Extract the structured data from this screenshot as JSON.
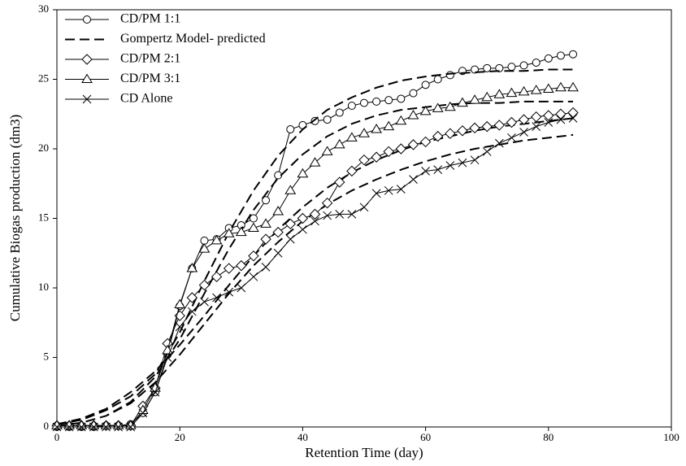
{
  "chart_data": {
    "type": "line",
    "x_label": "Retention Time (day)",
    "y_label": "Cumulative Biogas production (dm3)",
    "xlim": [
      0,
      100
    ],
    "xticks": [
      0,
      20,
      40,
      60,
      80,
      100
    ],
    "ylim": [
      0,
      30
    ],
    "yticks": [
      0,
      5,
      10,
      15,
      20,
      25,
      30
    ],
    "legend": "upper left",
    "series": [
      {
        "name": "CD/PM 1:1",
        "color": "#000000",
        "marker": "circle",
        "linestyle": "solid",
        "x": [
          0,
          2,
          4,
          6,
          8,
          10,
          12,
          14,
          16,
          18,
          20,
          22,
          24,
          26,
          28,
          30,
          32,
          34,
          36,
          38,
          40,
          42,
          44,
          46,
          48,
          50,
          52,
          54,
          56,
          58,
          60,
          62,
          64,
          66,
          68,
          70,
          72,
          74,
          76,
          78,
          80,
          82,
          84
        ],
        "values": [
          0,
          0,
          0,
          0,
          0.1,
          0.1,
          0.2,
          1.0,
          2.5,
          5.2,
          8.7,
          11.4,
          13.4,
          13.5,
          14.3,
          14.5,
          15.0,
          16.3,
          18.1,
          21.4,
          21.7,
          22.0,
          22.1,
          22.6,
          23.1,
          23.3,
          23.4,
          23.5,
          23.6,
          24.0,
          24.6,
          25.0,
          25.3,
          25.6,
          25.7,
          25.8,
          25.8,
          25.9,
          26.0,
          26.2,
          26.5,
          26.7,
          26.8
        ]
      },
      {
        "name": "Gompertz Model- predicted",
        "color": "#000000",
        "marker": "none",
        "linestyle": "dashed",
        "x": [
          0,
          4,
          8,
          12,
          16,
          20,
          24,
          28,
          32,
          36,
          40,
          44,
          48,
          52,
          56,
          60,
          64,
          68,
          72,
          76,
          80,
          84,
          null,
          0,
          4,
          8,
          12,
          16,
          20,
          24,
          28,
          32,
          36,
          40,
          44,
          48,
          52,
          56,
          60,
          64,
          68,
          72,
          76,
          80,
          84,
          null,
          0,
          4,
          8,
          12,
          16,
          20,
          24,
          28,
          32,
          36,
          40,
          44,
          48,
          52,
          56,
          60,
          64,
          68,
          72,
          76,
          80,
          84,
          null,
          0,
          4,
          8,
          12,
          16,
          20,
          24,
          28,
          32,
          36,
          40,
          44,
          48,
          52,
          56,
          60,
          64,
          68,
          72,
          76,
          80,
          84
        ],
        "values": [
          0.2,
          0.5,
          1.2,
          2.2,
          3.8,
          6.8,
          10.5,
          14.0,
          17.0,
          19.5,
          21.4,
          22.8,
          23.7,
          24.4,
          24.9,
          25.2,
          25.4,
          25.5,
          25.6,
          25.6,
          25.7,
          25.7,
          null,
          0.1,
          0.3,
          0.8,
          1.8,
          3.6,
          6.3,
          9.6,
          12.8,
          15.6,
          17.9,
          19.6,
          20.9,
          21.8,
          22.4,
          22.8,
          23.0,
          23.2,
          23.3,
          23.3,
          23.4,
          23.4,
          23.4,
          null,
          0.2,
          0.6,
          1.3,
          2.5,
          4.0,
          5.9,
          8.0,
          10.2,
          12.3,
          14.2,
          15.8,
          17.2,
          18.3,
          19.2,
          19.9,
          20.5,
          20.9,
          21.3,
          21.6,
          21.8,
          22.0,
          22.2,
          null,
          0.1,
          0.3,
          0.8,
          1.7,
          3.2,
          5.2,
          7.4,
          9.6,
          11.6,
          13.3,
          14.8,
          16.0,
          17.0,
          17.8,
          18.5,
          19.1,
          19.6,
          20.0,
          20.3,
          20.6,
          20.8,
          21.0
        ]
      },
      {
        "name": "CD/PM 2:1",
        "color": "#000000",
        "marker": "diamond",
        "linestyle": "solid",
        "x": [
          0,
          2,
          4,
          6,
          8,
          10,
          12,
          14,
          16,
          18,
          20,
          22,
          24,
          26,
          28,
          30,
          32,
          34,
          36,
          38,
          40,
          42,
          44,
          46,
          48,
          50,
          52,
          54,
          56,
          58,
          60,
          62,
          64,
          66,
          68,
          70,
          72,
          74,
          76,
          78,
          80,
          82,
          84
        ],
        "values": [
          0.1,
          0.1,
          0.1,
          0.1,
          0.1,
          0.1,
          0.1,
          1.5,
          2.8,
          6.0,
          8.0,
          9.3,
          10.2,
          10.8,
          11.4,
          11.6,
          12.3,
          13.5,
          14.0,
          14.6,
          15.0,
          15.3,
          16.1,
          17.6,
          18.4,
          19.2,
          19.4,
          19.8,
          20.0,
          20.3,
          20.5,
          20.9,
          21.1,
          21.3,
          21.5,
          21.6,
          21.7,
          21.9,
          22.1,
          22.3,
          22.4,
          22.5,
          22.6
        ]
      },
      {
        "name": "CD/PM 3:1",
        "color": "#000000",
        "marker": "triangle",
        "linestyle": "solid",
        "x": [
          0,
          2,
          4,
          6,
          8,
          10,
          12,
          14,
          16,
          18,
          20,
          22,
          24,
          26,
          28,
          30,
          32,
          34,
          36,
          38,
          40,
          42,
          44,
          46,
          48,
          50,
          52,
          54,
          56,
          58,
          60,
          62,
          64,
          66,
          68,
          70,
          72,
          74,
          76,
          78,
          80,
          82,
          84
        ],
        "values": [
          0.1,
          0.1,
          0.1,
          0.1,
          0.1,
          0.1,
          0.1,
          1.2,
          2.8,
          5.5,
          8.8,
          11.4,
          12.8,
          13.4,
          13.9,
          14.0,
          14.3,
          14.6,
          15.5,
          17.0,
          18.2,
          19.0,
          19.8,
          20.3,
          20.8,
          21.1,
          21.4,
          21.6,
          22.0,
          22.4,
          22.7,
          22.9,
          23.0,
          23.3,
          23.5,
          23.7,
          23.9,
          24.0,
          24.1,
          24.2,
          24.3,
          24.4,
          24.4
        ]
      },
      {
        "name": "CD Alone",
        "color": "#000000",
        "marker": "x",
        "linestyle": "solid",
        "x": [
          0,
          2,
          4,
          6,
          8,
          10,
          12,
          14,
          16,
          18,
          20,
          22,
          24,
          26,
          28,
          30,
          32,
          34,
          36,
          38,
          40,
          42,
          44,
          46,
          48,
          50,
          52,
          54,
          56,
          58,
          60,
          62,
          64,
          66,
          68,
          70,
          72,
          74,
          76,
          78,
          80,
          82,
          84
        ],
        "values": [
          0,
          0,
          0,
          0,
          0,
          0,
          0,
          1.0,
          2.5,
          5.0,
          7.2,
          8.3,
          9.0,
          9.3,
          9.7,
          10.0,
          10.8,
          11.5,
          12.5,
          13.5,
          14.2,
          14.8,
          15.2,
          15.3,
          15.3,
          15.8,
          16.8,
          17.0,
          17.1,
          17.8,
          18.4,
          18.5,
          18.8,
          19.0,
          19.2,
          19.8,
          20.4,
          20.8,
          21.2,
          21.6,
          21.9,
          22.1,
          22.2
        ]
      }
    ]
  }
}
